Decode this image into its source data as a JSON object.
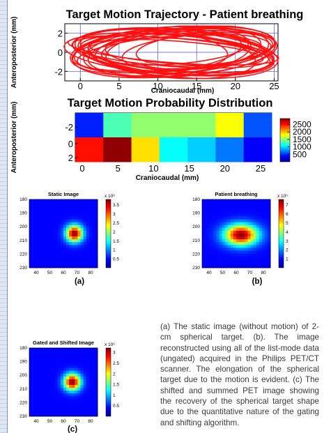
{
  "colors": {
    "trajectory": "#ff1010",
    "grid": "#4b4bd8",
    "axis": "#000000",
    "strip": "#dfe6f2"
  },
  "colormap": [
    "#00008f",
    "#0000ff",
    "#0080ff",
    "#00ffff",
    "#80ff80",
    "#ffff00",
    "#ff8000",
    "#ff0000",
    "#800000"
  ],
  "chart_data": [
    {
      "type": "line",
      "title": "Target Motion Trajectory  - Patient breathing",
      "xlabel": "Craniocaudal (mm)",
      "ylabel": "Anteroposterior (mm)",
      "xlim": [
        -2,
        25.5
      ],
      "ylim": [
        -3,
        3
      ],
      "xticks": [
        "0",
        "5",
        "10",
        "15",
        "20",
        "25"
      ],
      "yticks": [
        "2",
        "0",
        "-2"
      ],
      "grid": true,
      "note": "dense overlapping elliptical breathing loops spanning x≈-1..25 mm, y≈-2.7..2.7 mm"
    },
    {
      "type": "heatmap",
      "title": "Target Motion Probability Distribution",
      "xlabel": "Craniocaudal (mm)",
      "ylabel": "Anteroposterior (mm)",
      "xticks": [
        "0",
        "5",
        "10",
        "15",
        "20",
        "25"
      ],
      "yticks": [
        "-2",
        "0",
        "2"
      ],
      "rows": [
        [
          450,
          1300,
          1500,
          1500,
          1500,
          1800,
          600
        ],
        [
          2500,
          2850,
          1900,
          1100,
          950,
          700,
          350
        ]
      ],
      "colorbar": {
        "min": 0,
        "max": 2900,
        "ticks": [
          "2500",
          "2000",
          "1500",
          "1000",
          "500"
        ]
      }
    },
    {
      "type": "heatmap",
      "title": "Static Image",
      "subcaption": "(a)",
      "xticks": [
        "40",
        "50",
        "60",
        "70",
        "80"
      ],
      "yticks": [
        "180",
        "190",
        "200",
        "210",
        "220",
        "230"
      ],
      "blob": {
        "cx": 0.66,
        "cy": 0.5,
        "rx": 0.12,
        "ry": 0.12,
        "peak": 1.0
      },
      "colorbar": {
        "exponent": "x 10⁶",
        "max": 3.8,
        "ticks": [
          "3.5",
          "3",
          "2.5",
          "2",
          "1.5",
          "1",
          "0.5"
        ]
      }
    },
    {
      "type": "heatmap",
      "title": "Patient breathing",
      "subcaption": "(b)",
      "xticks": [
        "40",
        "50",
        "60",
        "70",
        "80"
      ],
      "yticks": [
        "180",
        "190",
        "200",
        "210",
        "220",
        "230"
      ],
      "blob": {
        "cx": 0.57,
        "cy": 0.52,
        "rx": 0.24,
        "ry": 0.15,
        "peak": 1.0
      },
      "colorbar": {
        "exponent": "x 10⁵",
        "max": 7.6,
        "ticks": [
          "7",
          "6",
          "5",
          "4",
          "3",
          "2",
          "1"
        ]
      }
    },
    {
      "type": "heatmap",
      "title": "Gated and Shifted Image",
      "subcaption": "(c)",
      "xticks": [
        "40",
        "50",
        "60",
        "70",
        "80"
      ],
      "yticks": [
        "180",
        "190",
        "200",
        "210",
        "220",
        "230"
      ],
      "blob": {
        "cx": 0.63,
        "cy": 0.5,
        "rx": 0.12,
        "ry": 0.12,
        "peak": 1.0
      },
      "colorbar": {
        "exponent": "x 10⁶",
        "max": 3.2,
        "ticks": [
          "3",
          "2.5",
          "2",
          "1.5",
          "1",
          "0.5"
        ]
      }
    }
  ],
  "caption": "(a) The static image (without motion) of 2-cm spherical target. (b). The image reconstructed using all of the list-mode data (ungated) acquired in the Philips PET/CT scanner. The elongation of the spherical target due to the motion is evident.  (c) The shifted and summed PET image showing the recovery of the spherical target shape due to the quantitative nature of the gating and shifting algorithm."
}
